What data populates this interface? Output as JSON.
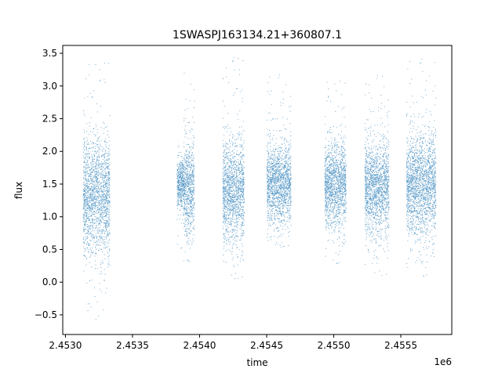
{
  "chart_data": {
    "type": "scatter",
    "title": "1SWASPJ163134.21+360807.1",
    "xlabel": "time",
    "ylabel": "flux",
    "x_offset_label": "1e6",
    "xlim": [
      2452980,
      2455880
    ],
    "ylim": [
      -0.8,
      3.62
    ],
    "x_ticks": [
      2453000,
      2453500,
      2454000,
      2454500,
      2455000,
      2455500
    ],
    "x_tick_labels": [
      "2.4530",
      "2.4535",
      "2.4540",
      "2.4545",
      "2.4550",
      "2.4555"
    ],
    "y_ticks": [
      -0.5,
      0.0,
      0.5,
      1.0,
      1.5,
      2.0,
      2.5,
      3.0,
      3.5
    ],
    "y_tick_labels": [
      "−0.5",
      "0.0",
      "0.5",
      "1.0",
      "1.5",
      "2.0",
      "2.5",
      "3.0",
      "3.5"
    ],
    "grid": false,
    "marker_color": "#1f77b4",
    "clusters": [
      {
        "x_range": [
          2453130,
          2453330
        ],
        "y_center": 1.3,
        "y_range": [
          -0.58,
          3.45
        ]
      },
      {
        "x_range": [
          2453830,
          2453880
        ],
        "y_center": 1.5,
        "y_range": [
          0.5,
          2.1
        ]
      },
      {
        "x_range": [
          2453880,
          2453960
        ],
        "y_center": 1.45,
        "y_range": [
          0.1,
          3.38
        ]
      },
      {
        "x_range": [
          2454170,
          2454330
        ],
        "y_center": 1.4,
        "y_range": [
          0.0,
          3.48
        ]
      },
      {
        "x_range": [
          2454500,
          2454680
        ],
        "y_center": 1.5,
        "y_range": [
          0.5,
          3.2
        ]
      },
      {
        "x_range": [
          2454930,
          2455090
        ],
        "y_center": 1.5,
        "y_range": [
          0.25,
          3.12
        ]
      },
      {
        "x_range": [
          2455230,
          2455410
        ],
        "y_center": 1.45,
        "y_range": [
          0.05,
          3.2
        ]
      },
      {
        "x_range": [
          2455540,
          2455760
        ],
        "y_center": 1.5,
        "y_range": [
          0.05,
          3.45
        ]
      }
    ]
  }
}
